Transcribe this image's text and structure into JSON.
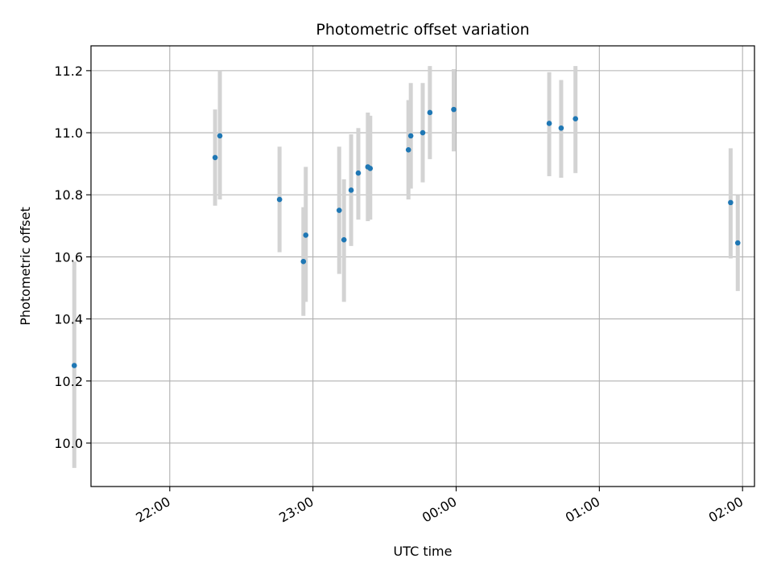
{
  "chart_data": {
    "type": "scatter",
    "title": "Photometric offset variation",
    "xlabel": "UTC time",
    "ylabel": "Photometric offset",
    "grid": true,
    "x_unit": "UTC time (HH:MM)",
    "xlim": [
      "21:27",
      "02:05"
    ],
    "ylim": [
      9.86,
      11.28
    ],
    "x_ticks": [
      "22:00",
      "23:00",
      "00:00",
      "01:00",
      "02:00"
    ],
    "y_ticks": [
      10.0,
      10.2,
      10.4,
      10.6,
      10.8,
      11.0,
      11.2
    ],
    "y_tick_labels": [
      "10.0",
      "10.2",
      "10.4",
      "10.6",
      "10.8",
      "11.0",
      "11.2"
    ],
    "point_color": "#1f77b4",
    "errorbar_color": "#d3d3d3",
    "points": [
      {
        "x": "21:20",
        "y": 10.25,
        "ylo": 9.92,
        "yhi": 10.585
      },
      {
        "x": "22:19",
        "y": 10.92,
        "ylo": 10.765,
        "yhi": 11.075
      },
      {
        "x": "22:21",
        "y": 10.99,
        "ylo": 10.785,
        "yhi": 11.2
      },
      {
        "x": "22:46",
        "y": 10.785,
        "ylo": 10.615,
        "yhi": 10.955
      },
      {
        "x": "22:56",
        "y": 10.585,
        "ylo": 10.41,
        "yhi": 10.76
      },
      {
        "x": "22:57",
        "y": 10.67,
        "ylo": 10.455,
        "yhi": 10.89
      },
      {
        "x": "23:11",
        "y": 10.75,
        "ylo": 10.545,
        "yhi": 10.955
      },
      {
        "x": "23:13",
        "y": 10.655,
        "ylo": 10.455,
        "yhi": 10.85
      },
      {
        "x": "23:16",
        "y": 10.815,
        "ylo": 10.635,
        "yhi": 10.995
      },
      {
        "x": "23:19",
        "y": 10.87,
        "ylo": 10.72,
        "yhi": 11.015
      },
      {
        "x": "23:23",
        "y": 10.89,
        "ylo": 10.715,
        "yhi": 11.065
      },
      {
        "x": "23:24",
        "y": 10.885,
        "ylo": 10.72,
        "yhi": 11.055
      },
      {
        "x": "23:40",
        "y": 10.945,
        "ylo": 10.785,
        "yhi": 11.105
      },
      {
        "x": "23:41",
        "y": 10.99,
        "ylo": 10.82,
        "yhi": 11.16
      },
      {
        "x": "23:46",
        "y": 11.0,
        "ylo": 10.84,
        "yhi": 11.16
      },
      {
        "x": "23:49",
        "y": 11.065,
        "ylo": 10.915,
        "yhi": 11.215
      },
      {
        "x": "23:59",
        "y": 11.075,
        "ylo": 10.94,
        "yhi": 11.205
      },
      {
        "x": "00:39",
        "y": 11.03,
        "ylo": 10.86,
        "yhi": 11.195
      },
      {
        "x": "00:44",
        "y": 11.015,
        "ylo": 10.855,
        "yhi": 11.17
      },
      {
        "x": "00:50",
        "y": 11.045,
        "ylo": 10.87,
        "yhi": 11.215
      },
      {
        "x": "01:55",
        "y": 10.775,
        "ylo": 10.595,
        "yhi": 10.95
      },
      {
        "x": "01:58",
        "y": 10.645,
        "ylo": 10.49,
        "yhi": 10.8
      }
    ]
  }
}
